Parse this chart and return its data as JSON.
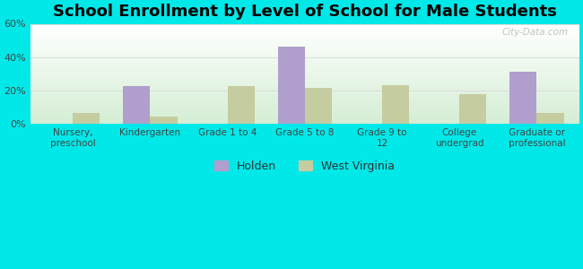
{
  "title": "School Enrollment by Level of School for Male Students",
  "categories": [
    "Nursery,\npreschool",
    "Kindergarten",
    "Grade 1 to 4",
    "Grade 5 to 8",
    "Grade 9 to\n12",
    "College\nundergrad",
    "Graduate or\nprofessional"
  ],
  "holden": [
    0,
    22.5,
    0,
    46.5,
    0,
    0,
    31.5
  ],
  "west_virginia": [
    6.5,
    4.5,
    22.5,
    21.5,
    23,
    18,
    6.5
  ],
  "holden_color": "#b09fcc",
  "wv_color": "#c5cc9f",
  "background_color": "#00e8e8",
  "ylim": [
    0,
    60
  ],
  "yticks": [
    0,
    20,
    40,
    60
  ],
  "ytick_labels": [
    "0%",
    "20%",
    "40%",
    "60%"
  ],
  "bar_width": 0.35,
  "title_fontsize": 13,
  "legend_labels": [
    "Holden",
    "West Virginia"
  ],
  "watermark": "City-Data.com",
  "grid_color": "#dddddd"
}
